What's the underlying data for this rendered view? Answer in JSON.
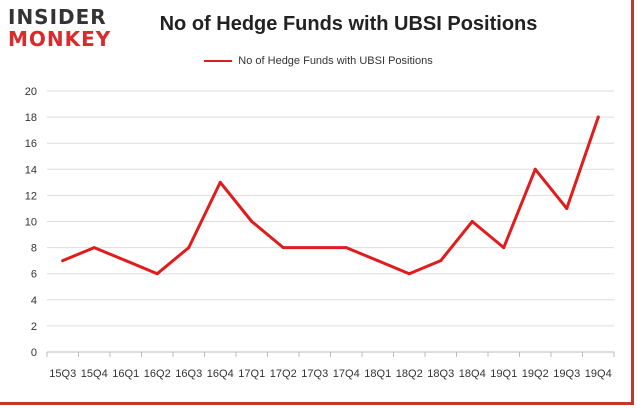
{
  "logo": {
    "line1": "INSIDER",
    "line2": "MONKEY"
  },
  "colors": {
    "series": "#e01c1c",
    "frame": "#c0392b",
    "grid": "#dddddd"
  },
  "chart_data": {
    "type": "line",
    "title": "No of Hedge Funds with UBSI Positions",
    "categories": [
      "15Q3",
      "15Q4",
      "16Q1",
      "16Q2",
      "16Q3",
      "16Q4",
      "17Q1",
      "17Q2",
      "17Q3",
      "17Q4",
      "18Q1",
      "18Q2",
      "18Q3",
      "18Q4",
      "19Q1",
      "19Q2",
      "19Q3",
      "19Q4"
    ],
    "series": [
      {
        "name": "No of Hedge Funds with UBSI Positions",
        "values": [
          7,
          8,
          7,
          6,
          8,
          13,
          10,
          8,
          8,
          8,
          7,
          6,
          7,
          10,
          8,
          14,
          11,
          18
        ]
      }
    ],
    "ylim": [
      0,
      20
    ],
    "yticks": [
      0,
      2,
      4,
      6,
      8,
      10,
      12,
      14,
      16,
      18,
      20
    ],
    "grid": true,
    "legend": "top-center"
  }
}
